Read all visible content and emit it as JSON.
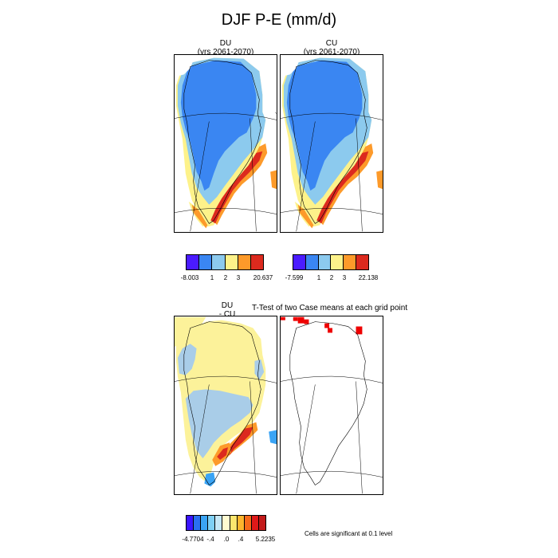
{
  "figure": {
    "title": "DJF P-E (mm/d)"
  },
  "panels": {
    "du": {
      "title_line1": "DU",
      "title_line2": "(yrs 2061-2070)"
    },
    "cu": {
      "title_line1": "CU",
      "title_line2": "(yrs 2061-2070)"
    },
    "diff": {
      "title_line1": "DU",
      "title_line2": "- CU"
    },
    "ttest": {
      "title": "T-Test of two Case means at each grid point",
      "note": "Cells are significant at 0.1 level"
    }
  },
  "colorbars": {
    "du": {
      "colors": [
        "#4a1bff",
        "#3a86f2",
        "#8ccaee",
        "#fdf28a",
        "#fd9a2a",
        "#dc2a1e"
      ],
      "labels": [
        "-8.003",
        "1",
        "2",
        "3",
        "20.637"
      ]
    },
    "cu": {
      "colors": [
        "#4a1bff",
        "#3a86f2",
        "#8ccaee",
        "#fdf28a",
        "#fd9a2a",
        "#dc2a1e"
      ],
      "labels": [
        "-7.599",
        "1",
        "2",
        "3",
        "22.138"
      ]
    },
    "diff": {
      "colors": [
        "#3b14ff",
        "#2a6ff0",
        "#3aa4f5",
        "#7fd0f5",
        "#c6e8f7",
        "#fffbd0",
        "#fde66e",
        "#fdb52d",
        "#f66a1a",
        "#e01919",
        "#c21a1a"
      ],
      "labels": [
        "-4.7704",
        "-.4",
        ".0",
        ".4",
        "5.2235"
      ]
    }
  },
  "colors": {
    "dark_blue": "#3a86f2",
    "light_blue": "#8ccaee",
    "yellow": "#fdf28a",
    "orange": "#fd9a2a",
    "red": "#dc2a1e",
    "diff_pale_blue": "#a9cde8",
    "diff_yellow": "#fcf29a",
    "significant": "#ee0000"
  }
}
